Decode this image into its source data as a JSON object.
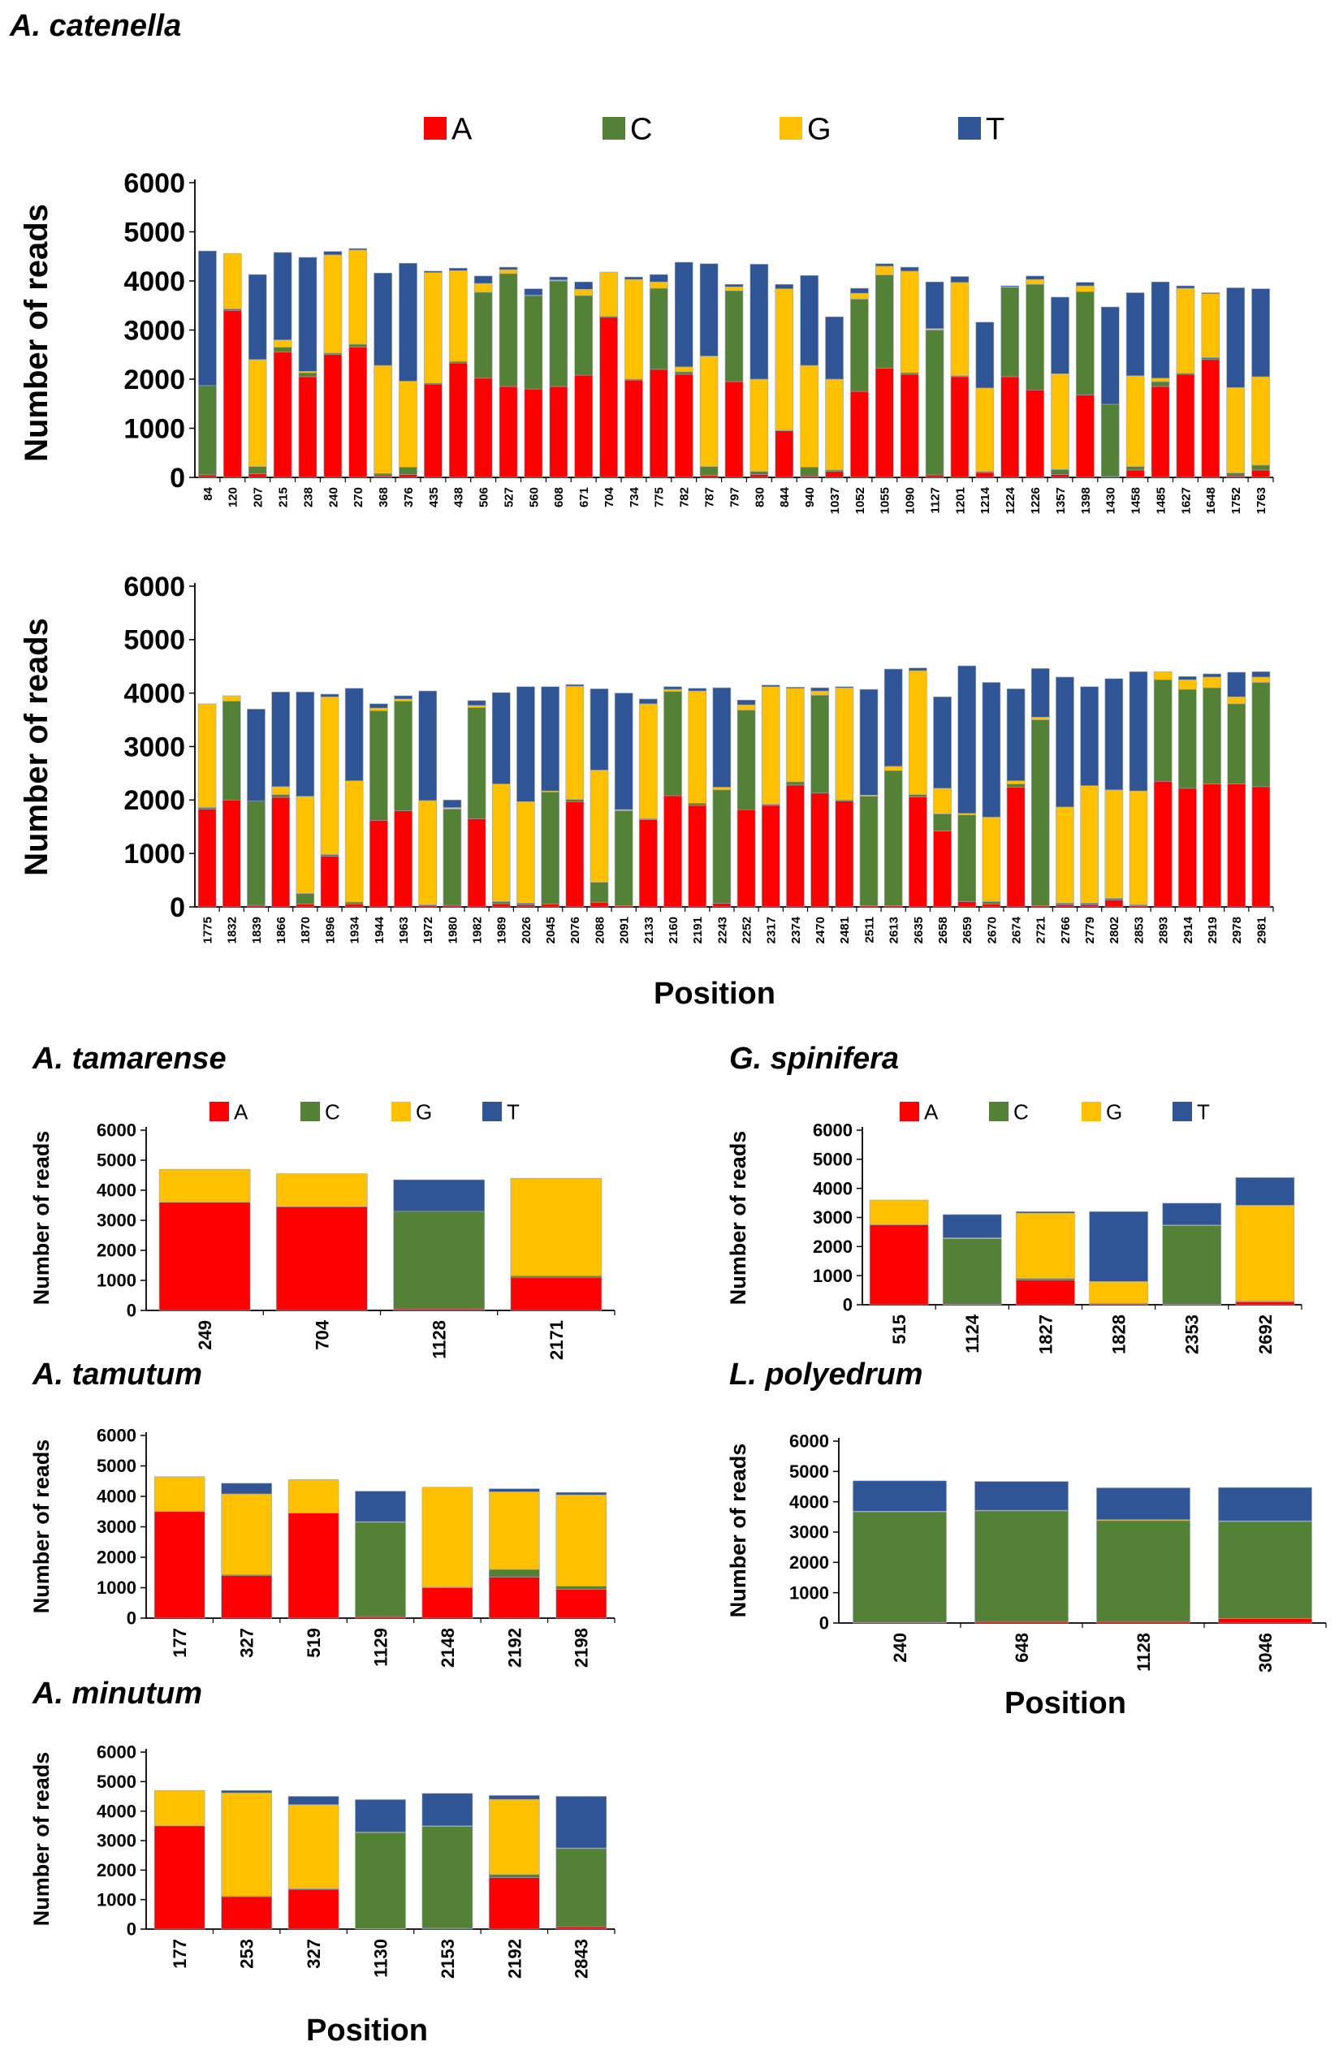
{
  "colors": {
    "A": "#ff0000",
    "C": "#538135",
    "G": "#ffc000",
    "T": "#2f5597"
  },
  "chart_data": [
    {
      "type": "bar",
      "stacked": true,
      "species": "A. catenella",
      "legend": [
        "A",
        "C",
        "G",
        "T"
      ],
      "ylabel": "Number of reads",
      "xlabel": "",
      "yticks": [
        "0",
        "1000",
        "2000",
        "3000",
        "4000",
        "5000",
        "6000"
      ],
      "ylim": [
        0,
        6000
      ],
      "categories": [
        "84",
        "120",
        "207",
        "215",
        "238",
        "240",
        "270",
        "368",
        "376",
        "435",
        "438",
        "506",
        "527",
        "560",
        "608",
        "671",
        "704",
        "734",
        "775",
        "782",
        "787",
        "797",
        "830",
        "844",
        "940",
        "1037",
        "1052",
        "1055",
        "1090",
        "1127",
        "1201",
        "1214",
        "1224",
        "1226",
        "1357",
        "1398",
        "1430",
        "1458",
        "1485",
        "1627",
        "1648",
        "1752",
        "1763"
      ],
      "series": [
        {
          "name": "A",
          "values": [
            50,
            3400,
            70,
            2550,
            2050,
            2500,
            2650,
            30,
            60,
            1900,
            2330,
            2020,
            1850,
            1800,
            1850,
            2080,
            3260,
            1980,
            2200,
            2100,
            40,
            1950,
            60,
            950,
            30,
            120,
            1750,
            2220,
            2100,
            50,
            2050,
            100,
            2050,
            1780,
            60,
            1680,
            20,
            150,
            1850,
            2100,
            2400,
            30,
            150
          ]
        },
        {
          "name": "C",
          "values": [
            1820,
            30,
            150,
            100,
            80,
            30,
            60,
            50,
            150,
            20,
            30,
            1750,
            2300,
            1900,
            2150,
            1620,
            20,
            20,
            1650,
            50,
            180,
            1850,
            60,
            10,
            180,
            30,
            1880,
            1900,
            30,
            2950,
            20,
            20,
            1820,
            2150,
            100,
            2100,
            1470,
            70,
            100,
            20,
            40,
            60,
            100
          ]
        },
        {
          "name": "G",
          "values": [
            0,
            1130,
            2180,
            150,
            30,
            2000,
            1920,
            2200,
            1750,
            2250,
            1850,
            180,
            80,
            10,
            20,
            130,
            900,
            2030,
            130,
            100,
            2250,
            80,
            1880,
            2880,
            2070,
            1850,
            120,
            180,
            2070,
            30,
            1900,
            1700,
            10,
            100,
            1950,
            120,
            0,
            1850,
            70,
            1730,
            1300,
            1740,
            1800
          ]
        },
        {
          "name": "T",
          "values": [
            2740,
            0,
            1730,
            1780,
            2320,
            70,
            30,
            1880,
            2400,
            30,
            50,
            150,
            50,
            130,
            60,
            150,
            0,
            50,
            150,
            2130,
            1880,
            50,
            2340,
            90,
            1830,
            1270,
            100,
            50,
            80,
            950,
            120,
            1340,
            20,
            70,
            1560,
            70,
            1980,
            1690,
            1960,
            50,
            20,
            2030,
            1790
          ]
        }
      ]
    },
    {
      "type": "bar",
      "stacked": true,
      "species": "",
      "legend": [],
      "ylabel": "Number of reads",
      "xlabel": "Position",
      "yticks": [
        "0",
        "1000",
        "2000",
        "3000",
        "4000",
        "5000",
        "6000"
      ],
      "ylim": [
        0,
        6000
      ],
      "categories": [
        "1775",
        "1832",
        "1839",
        "1866",
        "1870",
        "1896",
        "1934",
        "1944",
        "1963",
        "1972",
        "1980",
        "1982",
        "1989",
        "2026",
        "2045",
        "2076",
        "2088",
        "2091",
        "2133",
        "2160",
        "2191",
        "2243",
        "2252",
        "2317",
        "2374",
        "2470",
        "2481",
        "2511",
        "2613",
        "2635",
        "2658",
        "2659",
        "2670",
        "2674",
        "2721",
        "2766",
        "2779",
        "2802",
        "2853",
        "2893",
        "2914",
        "2919",
        "2978",
        "2981"
      ],
      "series": [
        {
          "name": "A",
          "values": [
            1830,
            2000,
            30,
            2050,
            50,
            950,
            50,
            1620,
            1800,
            30,
            30,
            1650,
            60,
            40,
            50,
            1970,
            80,
            20,
            1630,
            2080,
            1900,
            70,
            1820,
            1900,
            2280,
            2130,
            1980,
            20,
            20,
            2060,
            1420,
            100,
            50,
            2240,
            20,
            40,
            40,
            130,
            20,
            2350,
            2220,
            2300,
            2300,
            2250
          ]
        },
        {
          "name": "C",
          "values": [
            30,
            1850,
            1950,
            50,
            200,
            30,
            40,
            2050,
            2050,
            10,
            1800,
            2080,
            40,
            30,
            2100,
            40,
            380,
            1780,
            20,
            1950,
            40,
            2120,
            1860,
            20,
            60,
            1830,
            20,
            2050,
            2530,
            40,
            320,
            1620,
            50,
            60,
            3480,
            30,
            30,
            30,
            20,
            1900,
            1850,
            1800,
            1500,
            1950
          ]
        },
        {
          "name": "G",
          "values": [
            1940,
            100,
            0,
            150,
            1820,
            2950,
            2270,
            50,
            40,
            1950,
            30,
            40,
            2200,
            1900,
            20,
            2120,
            2100,
            20,
            2150,
            40,
            2100,
            50,
            100,
            2200,
            1750,
            80,
            2100,
            20,
            80,
            2320,
            480,
            30,
            1580,
            60,
            50,
            1800,
            2200,
            2030,
            2130,
            150,
            180,
            200,
            130,
            100
          ]
        },
        {
          "name": "T",
          "values": [
            0,
            0,
            1720,
            1770,
            1950,
            50,
            1730,
            80,
            60,
            2050,
            140,
            90,
            1710,
            2150,
            1950,
            30,
            1520,
            2180,
            90,
            50,
            50,
            1860,
            90,
            30,
            20,
            60,
            20,
            1980,
            1820,
            50,
            1710,
            2760,
            2520,
            1720,
            910,
            2430,
            1850,
            2080,
            2230,
            0,
            60,
            60,
            460,
            100
          ]
        }
      ]
    },
    {
      "type": "bar",
      "stacked": true,
      "species": "A. tamarense",
      "legend": [
        "A",
        "C",
        "G",
        "T"
      ],
      "ylabel": "Number of reads",
      "xlabel": "",
      "yticks": [
        "0",
        "1000",
        "2000",
        "3000",
        "4000",
        "5000",
        "6000"
      ],
      "ylim": [
        0,
        6000
      ],
      "categories": [
        "249",
        "704",
        "1128",
        "2171"
      ],
      "series": [
        {
          "name": "A",
          "values": [
            3600,
            3450,
            50,
            1100
          ]
        },
        {
          "name": "C",
          "values": [
            0,
            0,
            3250,
            50
          ]
        },
        {
          "name": "G",
          "values": [
            1100,
            1100,
            0,
            3250
          ]
        },
        {
          "name": "T",
          "values": [
            0,
            0,
            1050,
            0
          ]
        }
      ]
    },
    {
      "type": "bar",
      "stacked": true,
      "species": "G. spinifera",
      "legend": [
        "A",
        "C",
        "G",
        "T"
      ],
      "ylabel": "Number of reads",
      "xlabel": "",
      "yticks": [
        "0",
        "1000",
        "2000",
        "3000",
        "4000",
        "5000",
        "6000"
      ],
      "ylim": [
        0,
        6000
      ],
      "categories": [
        "515",
        "1124",
        "1827",
        "1828",
        "2353",
        "2692"
      ],
      "series": [
        {
          "name": "A",
          "values": [
            2750,
            20,
            850,
            30,
            20,
            100
          ]
        },
        {
          "name": "C",
          "values": [
            0,
            2250,
            50,
            20,
            2700,
            20
          ]
        },
        {
          "name": "G",
          "values": [
            850,
            30,
            2250,
            750,
            20,
            3300
          ]
        },
        {
          "name": "T",
          "values": [
            0,
            800,
            50,
            2400,
            750,
            950
          ]
        }
      ]
    },
    {
      "type": "bar",
      "stacked": true,
      "species": "A. tamutum",
      "legend": [],
      "ylabel": "Number of reads",
      "xlabel": "",
      "yticks": [
        "0",
        "1000",
        "2000",
        "3000",
        "4000",
        "5000",
        "6000"
      ],
      "ylim": [
        0,
        6000
      ],
      "categories": [
        "177",
        "327",
        "519",
        "1129",
        "2148",
        "2192",
        "2198"
      ],
      "series": [
        {
          "name": "A",
          "values": [
            3500,
            1400,
            3450,
            50,
            1000,
            1350,
            950
          ]
        },
        {
          "name": "C",
          "values": [
            0,
            30,
            0,
            3100,
            20,
            250,
            100
          ]
        },
        {
          "name": "G",
          "values": [
            1150,
            2650,
            1100,
            20,
            3280,
            2550,
            3000
          ]
        },
        {
          "name": "T",
          "values": [
            0,
            350,
            0,
            1000,
            0,
            100,
            80
          ]
        }
      ]
    },
    {
      "type": "bar",
      "stacked": true,
      "species": "L. polyedrum",
      "legend": [],
      "ylabel": "Number of reads",
      "xlabel": "Position",
      "yticks": [
        "0",
        "1000",
        "2000",
        "3000",
        "4000",
        "5000",
        "6000"
      ],
      "ylim": [
        0,
        6000
      ],
      "categories": [
        "240",
        "648",
        "1128",
        "3046"
      ],
      "series": [
        {
          "name": "A",
          "values": [
            20,
            50,
            50,
            150
          ]
        },
        {
          "name": "C",
          "values": [
            3650,
            3650,
            3330,
            3200
          ]
        },
        {
          "name": "G",
          "values": [
            20,
            20,
            30,
            20
          ]
        },
        {
          "name": "T",
          "values": [
            1000,
            950,
            1050,
            1100
          ]
        }
      ]
    },
    {
      "type": "bar",
      "stacked": true,
      "species": "A. minutum",
      "legend": [],
      "ylabel": "Number of reads",
      "xlabel": "Position",
      "yticks": [
        "0",
        "1000",
        "2000",
        "3000",
        "4000",
        "5000",
        "6000"
      ],
      "ylim": [
        0,
        6000
      ],
      "categories": [
        "177",
        "253",
        "327",
        "1130",
        "2153",
        "2192",
        "2843"
      ],
      "series": [
        {
          "name": "A",
          "values": [
            3500,
            1100,
            1350,
            20,
            30,
            1750,
            80
          ]
        },
        {
          "name": "C",
          "values": [
            0,
            20,
            20,
            3250,
            3450,
            100,
            2650
          ]
        },
        {
          "name": "G",
          "values": [
            1200,
            3500,
            2850,
            20,
            20,
            2550,
            20
          ]
        },
        {
          "name": "T",
          "values": [
            0,
            80,
            280,
            1100,
            1100,
            130,
            1750
          ]
        }
      ]
    }
  ]
}
